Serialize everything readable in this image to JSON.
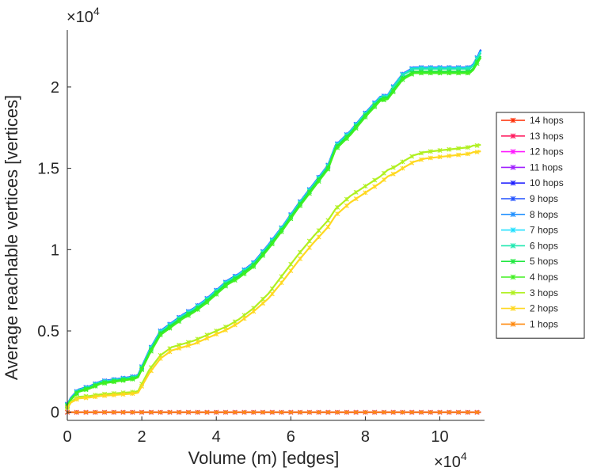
{
  "chart_data": {
    "type": "line",
    "title": "",
    "xlabel": "Volume (m) [edges]",
    "ylabel": "Average reachable vertices [vertices]",
    "x_multiplier_label": "×10",
    "x_multiplier_exp": "4",
    "y_multiplier_label": "×10",
    "y_multiplier_exp": "4",
    "xlim": [
      0,
      112000
    ],
    "ylim": [
      -500,
      23500
    ],
    "xticks": [
      0,
      20000,
      40000,
      60000,
      80000,
      100000
    ],
    "xtick_labels": [
      "0",
      "2",
      "4",
      "6",
      "8",
      "10"
    ],
    "yticks": [
      0,
      5000,
      10000,
      15000,
      20000
    ],
    "ytick_labels": [
      "0",
      "0.5",
      "1",
      "1.5",
      "2"
    ],
    "grid": false,
    "legend_position": "right",
    "x": [
      0,
      1000,
      3000,
      6000,
      9000,
      12000,
      15000,
      18000,
      19000,
      22000,
      25000,
      28000,
      31000,
      34000,
      37000,
      40000,
      43000,
      46000,
      50000,
      54000,
      58000,
      62000,
      66000,
      70000,
      72000,
      76000,
      80000,
      84000,
      86000,
      88000,
      90000,
      93000,
      96000,
      100000,
      104000,
      108000,
      109000,
      110000,
      111000
    ],
    "series": [
      {
        "name": "14 hops",
        "color": "#ff2a00",
        "values": [
          0,
          0,
          0,
          0,
          0,
          0,
          0,
          0,
          0,
          0,
          0,
          0,
          0,
          0,
          0,
          0,
          0,
          0,
          0,
          0,
          0,
          0,
          0,
          0,
          0,
          0,
          0,
          0,
          0,
          0,
          0,
          0,
          0,
          0,
          0,
          0,
          0,
          0,
          0
        ]
      },
      {
        "name": "13 hops",
        "color": "#ff1a5e",
        "values": [
          0,
          0,
          0,
          0,
          0,
          0,
          0,
          0,
          0,
          0,
          0,
          0,
          0,
          0,
          0,
          0,
          0,
          0,
          0,
          0,
          0,
          0,
          0,
          0,
          0,
          0,
          0,
          0,
          0,
          0,
          0,
          0,
          0,
          0,
          0,
          0,
          0,
          0,
          0
        ]
      },
      {
        "name": "12 hops",
        "color": "#ff1aff",
        "values": [
          0,
          0,
          0,
          0,
          0,
          0,
          0,
          0,
          0,
          0,
          0,
          0,
          0,
          0,
          0,
          0,
          0,
          0,
          0,
          0,
          0,
          0,
          0,
          0,
          0,
          0,
          0,
          0,
          0,
          0,
          0,
          0,
          0,
          0,
          0,
          0,
          0,
          0,
          0
        ]
      },
      {
        "name": "11 hops",
        "color": "#a020ff",
        "values": [
          0,
          0,
          0,
          0,
          0,
          0,
          0,
          0,
          0,
          0,
          0,
          0,
          0,
          0,
          0,
          0,
          0,
          0,
          0,
          0,
          0,
          0,
          0,
          0,
          0,
          0,
          0,
          0,
          0,
          0,
          0,
          0,
          0,
          0,
          0,
          0,
          0,
          0,
          0
        ]
      },
      {
        "name": "10 hops",
        "color": "#2020ff",
        "values": [
          500,
          900,
          1400,
          1600,
          1900,
          2000,
          2100,
          2200,
          2300,
          3800,
          5000,
          5500,
          6000,
          6400,
          6900,
          7500,
          8100,
          8500,
          9200,
          10300,
          11500,
          12800,
          14000,
          15200,
          16400,
          17300,
          18400,
          19400,
          19500,
          20200,
          20800,
          21200,
          21200,
          21200,
          21200,
          21200,
          21400,
          21800,
          22300
        ]
      },
      {
        "name": "9 hops",
        "color": "#2050ff",
        "values": [
          500,
          900,
          1400,
          1600,
          1900,
          2000,
          2100,
          2200,
          2300,
          3800,
          5000,
          5500,
          6000,
          6400,
          6900,
          7500,
          8100,
          8500,
          9200,
          10300,
          11500,
          12800,
          14000,
          15200,
          16400,
          17300,
          18400,
          19400,
          19500,
          20200,
          20800,
          21200,
          21200,
          21200,
          21200,
          21200,
          21400,
          21800,
          22300
        ]
      },
      {
        "name": "8 hops",
        "color": "#2090ff",
        "values": [
          480,
          880,
          1380,
          1580,
          1880,
          1980,
          2080,
          2180,
          2280,
          3780,
          4980,
          5480,
          5980,
          6380,
          6880,
          7480,
          8080,
          8480,
          9180,
          10280,
          11480,
          12780,
          13980,
          15180,
          16380,
          17280,
          18380,
          19380,
          19480,
          20180,
          20780,
          21180,
          21180,
          21180,
          21180,
          21180,
          21380,
          21780,
          22250
        ]
      },
      {
        "name": "7 hops",
        "color": "#20e0ff",
        "values": [
          470,
          870,
          1370,
          1570,
          1870,
          1970,
          2070,
          2170,
          2270,
          3760,
          4960,
          5460,
          5960,
          6360,
          6860,
          7460,
          8060,
          8460,
          9160,
          10260,
          11460,
          12760,
          13960,
          15160,
          16360,
          17260,
          18360,
          19360,
          19460,
          20160,
          20760,
          21160,
          21160,
          21160,
          21160,
          21160,
          21360,
          21760,
          22200
        ]
      },
      {
        "name": "6 hops",
        "color": "#20e8b0",
        "values": [
          450,
          850,
          1350,
          1550,
          1850,
          1950,
          2050,
          2150,
          2250,
          3720,
          4920,
          5420,
          5920,
          6320,
          6820,
          7420,
          8020,
          8420,
          9120,
          10220,
          11420,
          12720,
          13920,
          15120,
          16320,
          17220,
          18320,
          19320,
          19420,
          20120,
          20720,
          21120,
          21120,
          21120,
          21120,
          21120,
          21320,
          21720,
          22100
        ]
      },
      {
        "name": "5 hops",
        "color": "#20e840",
        "values": [
          420,
          820,
          1300,
          1500,
          1800,
          1900,
          2000,
          2100,
          2200,
          3650,
          4850,
          5350,
          5850,
          6250,
          6750,
          7350,
          7950,
          8350,
          9050,
          10150,
          11350,
          12650,
          13850,
          15050,
          16250,
          17150,
          18250,
          19250,
          19350,
          19950,
          20550,
          20950,
          20950,
          20950,
          20950,
          20950,
          21150,
          21550,
          21900
        ]
      },
      {
        "name": "4 hops",
        "color": "#40f020",
        "values": [
          380,
          780,
          1250,
          1450,
          1750,
          1850,
          1950,
          2050,
          2150,
          3550,
          4750,
          5250,
          5750,
          6150,
          6650,
          7250,
          7850,
          8250,
          8950,
          10050,
          11250,
          12550,
          13750,
          14950,
          16150,
          17050,
          18150,
          19150,
          19250,
          19850,
          20450,
          20850,
          20850,
          20850,
          20850,
          20850,
          21050,
          21450,
          21800
        ]
      },
      {
        "name": "3 hops",
        "color": "#b0f020",
        "values": [
          300,
          650,
          950,
          1000,
          1100,
          1150,
          1200,
          1250,
          1300,
          2600,
          3500,
          4000,
          4200,
          4400,
          4700,
          5000,
          5300,
          5700,
          6400,
          7300,
          8500,
          9700,
          10800,
          11800,
          12500,
          13300,
          13900,
          14500,
          14900,
          15100,
          15400,
          15800,
          16000,
          16100,
          16200,
          16300,
          16400,
          16400,
          16450
        ]
      },
      {
        "name": "2 hops",
        "color": "#ffd820",
        "values": [
          250,
          600,
          850,
          900,
          1000,
          1050,
          1100,
          1150,
          1200,
          2400,
          3300,
          3800,
          4000,
          4200,
          4500,
          4800,
          5100,
          5500,
          6200,
          7000,
          8100,
          9300,
          10400,
          11400,
          12100,
          12900,
          13500,
          14100,
          14500,
          14700,
          15000,
          15400,
          15600,
          15700,
          15800,
          15900,
          16000,
          16000,
          16050
        ]
      },
      {
        "name": "1 hops",
        "color": "#ff8a10",
        "values": [
          0,
          0,
          0,
          0,
          0,
          0,
          0,
          0,
          0,
          0,
          0,
          0,
          0,
          0,
          0,
          0,
          0,
          0,
          0,
          0,
          0,
          0,
          0,
          0,
          0,
          0,
          0,
          0,
          0,
          0,
          0,
          0,
          0,
          0,
          0,
          0,
          0,
          0,
          0
        ]
      }
    ]
  }
}
